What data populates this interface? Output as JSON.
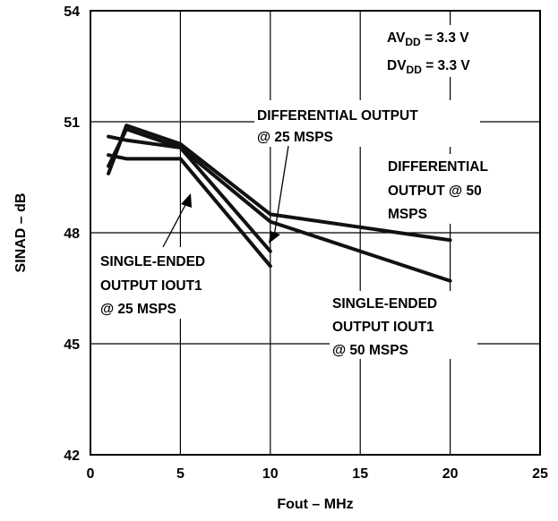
{
  "chart_data": {
    "type": "line",
    "xlabel": "Fout – MHz",
    "ylabel": "SINAD – dB",
    "xlim": [
      0,
      25
    ],
    "ylim": [
      42,
      54
    ],
    "xticks": [
      "0",
      "5",
      "10",
      "15",
      "20",
      "25"
    ],
    "yticks": [
      "42",
      "45",
      "48",
      "51",
      "54"
    ],
    "grid": true,
    "series": [
      {
        "x": [
          1,
          2,
          5,
          10,
          20
        ],
        "y": [
          49.6,
          50.9,
          50.4,
          48.5,
          47.8
        ]
      },
      {
        "x": [
          1,
          2,
          5,
          10,
          20
        ],
        "y": [
          49.8,
          50.8,
          50.3,
          48.3,
          46.7
        ]
      },
      {
        "x": [
          1,
          2,
          5,
          10
        ],
        "y": [
          50.6,
          50.5,
          50.3,
          47.5
        ]
      },
      {
        "x": [
          1,
          2,
          5,
          10
        ],
        "y": [
          50.1,
          50.0,
          50.0,
          47.1
        ]
      }
    ],
    "annotations": {
      "avdd": {
        "main": "AV",
        "sub": "DD",
        "rest": " = 3.3 V"
      },
      "dvdd": {
        "main": "DV",
        "sub": "DD",
        "rest": " = 3.3 V"
      },
      "diff25": [
        "DIFFERENTIAL OUTPUT",
        "@ 25 MSPS"
      ],
      "diff50": [
        "DIFFERENTIAL",
        "OUTPUT @ 50",
        "MSPS"
      ],
      "se25": [
        "SINGLE-ENDED",
        "OUTPUT IOUT1",
        "@ 25 MSPS"
      ],
      "se50": [
        "SINGLE-ENDED",
        "OUTPUT IOUT1",
        "@ 50 MSPS"
      ]
    }
  }
}
